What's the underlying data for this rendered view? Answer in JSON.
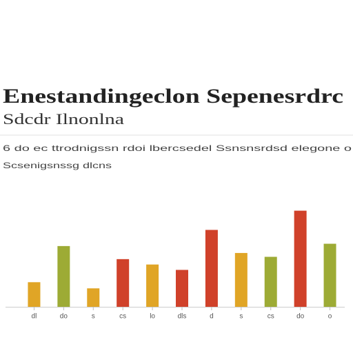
{
  "chart_data": {
    "type": "bar",
    "title": "Enestandingeclon Sepenesrdrc",
    "subtitle": "Sdcdr Ilnonlna",
    "description": [
      "6 do ec ttrodnigssn rdoi lbercsedel Ssnsnsrdsd elegone o",
      "Scsenigsnssg dlcns"
    ],
    "categories": [
      "dl",
      "do",
      "s",
      "cs",
      "lo",
      "dls",
      "d",
      "s",
      "cs",
      "do",
      "o"
    ],
    "values": [
      32,
      79,
      24,
      62,
      55,
      48,
      100,
      70,
      65,
      125,
      82
    ],
    "colors": [
      "#e0a526",
      "#9dab35",
      "#e0a526",
      "#d0412a",
      "#e0a526",
      "#d0412a",
      "#d0412a",
      "#e0a526",
      "#9dab35",
      "#d0412a",
      "#9dab35"
    ],
    "ylim": [
      0,
      130
    ]
  }
}
